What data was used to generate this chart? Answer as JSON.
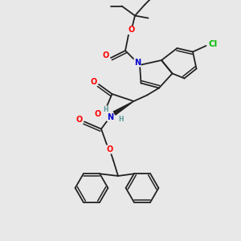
{
  "background_color": "#e8e8e8",
  "figsize": [
    3.0,
    3.0
  ],
  "dpi": 100,
  "atom_colors": {
    "O": "#ff0000",
    "N": "#0000cc",
    "Cl": "#00bb00",
    "C": "#000000",
    "H": "#5a9a9a"
  },
  "bond_color": "#222222",
  "bond_width": 1.3,
  "font_size_atoms": 7.0,
  "font_size_small": 5.5,
  "xlim": [
    0,
    10
  ],
  "ylim": [
    0,
    10
  ]
}
